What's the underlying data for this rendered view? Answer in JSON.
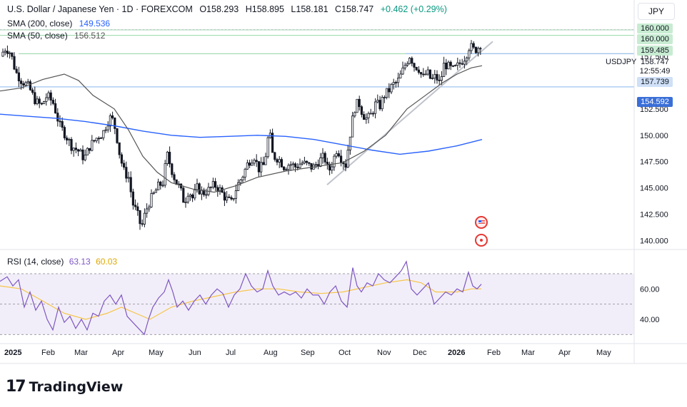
{
  "header": {
    "symbol": "U.S. Dollar / Japanese Yen · 1D · FOREXCOM",
    "open": "O158.293",
    "high": "H158.895",
    "low": "L158.181",
    "close": "C158.747",
    "change": "+0.462 (+0.29%)",
    "sma200_label": "SMA (200, close)",
    "sma200_value": "149.536",
    "sma50_label": "SMA (50, close)",
    "sma50_value": "156.512",
    "currency_button": "JPY"
  },
  "price_tags": {
    "t160_top": "160.000",
    "t160": "160.000",
    "t159": "159.485",
    "last_price": "158.747",
    "countdown": "12:55:49",
    "symbol": "USDJPY",
    "t157": "157.739",
    "t154": "154.592"
  },
  "rsi": {
    "label": "RSI (14, close)",
    "value": "63.13",
    "ma_value": "60.03"
  },
  "branding": {
    "name": "TradingView"
  },
  "colors": {
    "up": "#131722",
    "down": "#131722",
    "sma200": "#2962ff",
    "sma50": "#555555",
    "rsi": "#7e57c2",
    "rsi_ma": "#f7c548",
    "level_green": "#a5dcb3",
    "level_blue": "#9fc3ef",
    "accent_blue": "#3a6fd8"
  },
  "chart_data": {
    "type": "candlestick",
    "symbol": "USDJPY",
    "timeframe": "1D",
    "x_ticks": [
      "2025",
      "Feb",
      "Mar",
      "Apr",
      "May",
      "Jun",
      "Jul",
      "Aug",
      "Sep",
      "Oct",
      "Nov",
      "Dec",
      "2026",
      "Feb",
      "Mar",
      "Apr",
      "May"
    ],
    "y_ticks": [
      160.0,
      157.5,
      155.0,
      152.5,
      150.0,
      147.5,
      145.0,
      142.5,
      140.0
    ],
    "ylim": [
      139.5,
      162.5
    ],
    "price_path": [
      [
        0,
        157.5
      ],
      [
        8,
        158.3
      ],
      [
        15,
        157.8
      ],
      [
        22,
        156.0
      ],
      [
        30,
        155.2
      ],
      [
        40,
        154.6
      ],
      [
        50,
        153.2
      ],
      [
        58,
        152.8
      ],
      [
        66,
        153.8
      ],
      [
        75,
        153.0
      ],
      [
        83,
        151.0
      ],
      [
        92,
        150.0
      ],
      [
        100,
        149.0
      ],
      [
        110,
        148.5
      ],
      [
        118,
        147.8
      ],
      [
        126,
        149.0
      ],
      [
        136,
        149.8
      ],
      [
        144,
        150.2
      ],
      [
        150,
        151.2
      ],
      [
        156,
        151.8
      ],
      [
        162,
        150.5
      ],
      [
        168,
        148.0
      ],
      [
        174,
        146.5
      ],
      [
        180,
        146.0
      ],
      [
        186,
        143.5
      ],
      [
        192,
        142.6
      ],
      [
        198,
        141.2
      ],
      [
        204,
        142.8
      ],
      [
        210,
        143.8
      ],
      [
        216,
        144.5
      ],
      [
        222,
        145.2
      ],
      [
        228,
        145.5
      ],
      [
        234,
        148.2
      ],
      [
        240,
        146.8
      ],
      [
        246,
        145.6
      ],
      [
        252,
        145.0
      ],
      [
        258,
        143.6
      ],
      [
        264,
        144.8
      ],
      [
        270,
        144.0
      ],
      [
        276,
        145.0
      ],
      [
        284,
        144.5
      ],
      [
        292,
        144.8
      ],
      [
        300,
        145.3
      ],
      [
        308,
        144.8
      ],
      [
        316,
        144.0
      ],
      [
        324,
        143.6
      ],
      [
        332,
        145.2
      ],
      [
        340,
        146.2
      ],
      [
        348,
        147.5
      ],
      [
        356,
        148.0
      ],
      [
        362,
        146.8
      ],
      [
        370,
        147.2
      ],
      [
        377,
        150.5
      ],
      [
        382,
        148.0
      ],
      [
        390,
        147.8
      ],
      [
        398,
        147.0
      ],
      [
        406,
        147.3
      ],
      [
        414,
        147.0
      ],
      [
        422,
        147.4
      ],
      [
        430,
        147.2
      ],
      [
        438,
        146.9
      ],
      [
        446,
        147.5
      ],
      [
        454,
        148.0
      ],
      [
        460,
        146.5
      ],
      [
        466,
        147.5
      ],
      [
        472,
        148.8
      ],
      [
        478,
        147.8
      ],
      [
        484,
        147.2
      ],
      [
        490,
        150.0
      ],
      [
        496,
        152.5
      ],
      [
        502,
        153.2
      ],
      [
        508,
        152.0
      ],
      [
        514,
        151.5
      ],
      [
        520,
        152.0
      ],
      [
        526,
        153.0
      ],
      [
        532,
        152.8
      ],
      [
        538,
        153.8
      ],
      [
        544,
        154.2
      ],
      [
        550,
        154.8
      ],
      [
        556,
        155.0
      ],
      [
        562,
        155.8
      ],
      [
        568,
        156.8
      ],
      [
        574,
        157.6
      ],
      [
        580,
        156.6
      ],
      [
        586,
        156.4
      ],
      [
        592,
        155.4
      ],
      [
        598,
        156.0
      ],
      [
        604,
        155.2
      ],
      [
        610,
        155.6
      ],
      [
        616,
        154.9
      ],
      [
        622,
        156.8
      ],
      [
        628,
        156.5
      ],
      [
        634,
        156.2
      ],
      [
        640,
        156.5
      ],
      [
        646,
        157.0
      ],
      [
        652,
        157.5
      ],
      [
        658,
        158.6
      ],
      [
        662,
        158.1
      ],
      [
        668,
        158.2
      ],
      [
        674,
        158.75
      ]
    ],
    "sma200_path": [
      [
        0,
        152.0
      ],
      [
        40,
        151.8
      ],
      [
        80,
        151.6
      ],
      [
        120,
        151.3
      ],
      [
        160,
        150.9
      ],
      [
        200,
        150.4
      ],
      [
        240,
        150.0
      ],
      [
        280,
        149.8
      ],
      [
        320,
        149.9
      ],
      [
        360,
        150.0
      ],
      [
        400,
        149.9
      ],
      [
        440,
        149.6
      ],
      [
        480,
        149.1
      ],
      [
        520,
        148.6
      ],
      [
        560,
        148.2
      ],
      [
        600,
        148.5
      ],
      [
        640,
        149.0
      ],
      [
        675,
        149.6
      ]
    ],
    "sma50_path": [
      [
        0,
        154.2
      ],
      [
        30,
        154.5
      ],
      [
        60,
        155.3
      ],
      [
        90,
        155.8
      ],
      [
        110,
        155.2
      ],
      [
        130,
        153.8
      ],
      [
        160,
        152.5
      ],
      [
        180,
        150.5
      ],
      [
        200,
        148.0
      ],
      [
        220,
        146.5
      ],
      [
        240,
        145.5
      ],
      [
        270,
        144.9
      ],
      [
        300,
        144.6
      ],
      [
        330,
        145.2
      ],
      [
        360,
        146.0
      ],
      [
        400,
        146.6
      ],
      [
        440,
        147.0
      ],
      [
        480,
        147.4
      ],
      [
        510,
        148.5
      ],
      [
        540,
        150.0
      ],
      [
        570,
        152.5
      ],
      [
        600,
        154.0
      ],
      [
        620,
        155.0
      ],
      [
        640,
        155.8
      ],
      [
        660,
        156.4
      ],
      [
        675,
        156.6
      ]
    ],
    "levels": [
      160.0,
      159.485,
      157.739,
      154.592
    ],
    "trendline": [
      [
        458,
        145.3
      ],
      [
        690,
        158.9
      ]
    ],
    "rsi": {
      "ylim": [
        25,
        85
      ],
      "levels": [
        70,
        50,
        30
      ],
      "y_ticks": [
        60.0,
        40.0
      ],
      "rsi_path": [
        [
          0,
          65
        ],
        [
          10,
          68
        ],
        [
          18,
          62
        ],
        [
          26,
          66
        ],
        [
          34,
          48
        ],
        [
          42,
          58
        ],
        [
          50,
          46
        ],
        [
          58,
          52
        ],
        [
          66,
          40
        ],
        [
          74,
          33
        ],
        [
          82,
          48
        ],
        [
          90,
          38
        ],
        [
          98,
          42
        ],
        [
          106,
          34
        ],
        [
          114,
          40
        ],
        [
          122,
          33
        ],
        [
          130,
          44
        ],
        [
          138,
          42
        ],
        [
          146,
          52
        ],
        [
          154,
          56
        ],
        [
          162,
          50
        ],
        [
          170,
          56
        ],
        [
          178,
          42
        ],
        [
          186,
          38
        ],
        [
          194,
          34
        ],
        [
          202,
          30
        ],
        [
          208,
          40
        ],
        [
          214,
          48
        ],
        [
          222,
          54
        ],
        [
          230,
          58
        ],
        [
          236,
          66
        ],
        [
          242,
          58
        ],
        [
          248,
          48
        ],
        [
          256,
          52
        ],
        [
          264,
          46
        ],
        [
          272,
          52
        ],
        [
          280,
          56
        ],
        [
          288,
          50
        ],
        [
          296,
          56
        ],
        [
          304,
          60
        ],
        [
          312,
          57
        ],
        [
          320,
          48
        ],
        [
          328,
          56
        ],
        [
          336,
          60
        ],
        [
          344,
          70
        ],
        [
          352,
          62
        ],
        [
          360,
          58
        ],
        [
          368,
          60
        ],
        [
          375,
          72
        ],
        [
          382,
          62
        ],
        [
          390,
          56
        ],
        [
          398,
          58
        ],
        [
          406,
          56
        ],
        [
          414,
          58
        ],
        [
          422,
          54
        ],
        [
          430,
          60
        ],
        [
          438,
          56
        ],
        [
          446,
          56
        ],
        [
          454,
          50
        ],
        [
          462,
          58
        ],
        [
          470,
          62
        ],
        [
          478,
          52
        ],
        [
          486,
          48
        ],
        [
          494,
          74
        ],
        [
          500,
          62
        ],
        [
          506,
          58
        ],
        [
          514,
          64
        ],
        [
          522,
          62
        ],
        [
          530,
          70
        ],
        [
          538,
          66
        ],
        [
          546,
          64
        ],
        [
          554,
          68
        ],
        [
          562,
          72
        ],
        [
          569,
          78
        ],
        [
          576,
          60
        ],
        [
          584,
          56
        ],
        [
          592,
          60
        ],
        [
          600,
          64
        ],
        [
          608,
          50
        ],
        [
          616,
          54
        ],
        [
          624,
          58
        ],
        [
          632,
          56
        ],
        [
          640,
          60
        ],
        [
          648,
          58
        ],
        [
          656,
          71
        ],
        [
          662,
          62
        ],
        [
          668,
          60
        ],
        [
          674,
          63.13
        ]
      ],
      "ma_path": [
        [
          0,
          62
        ],
        [
          30,
          60
        ],
        [
          60,
          52
        ],
        [
          90,
          44
        ],
        [
          120,
          40
        ],
        [
          150,
          44
        ],
        [
          170,
          48
        ],
        [
          190,
          44
        ],
        [
          210,
          40
        ],
        [
          240,
          48
        ],
        [
          270,
          52
        ],
        [
          300,
          55
        ],
        [
          330,
          58
        ],
        [
          360,
          60
        ],
        [
          390,
          60
        ],
        [
          420,
          58
        ],
        [
          450,
          57
        ],
        [
          480,
          58
        ],
        [
          510,
          61
        ],
        [
          540,
          64
        ],
        [
          570,
          66
        ],
        [
          590,
          64
        ],
        [
          610,
          58
        ],
        [
          640,
          58
        ],
        [
          660,
          60
        ],
        [
          674,
          60.03
        ]
      ]
    }
  }
}
